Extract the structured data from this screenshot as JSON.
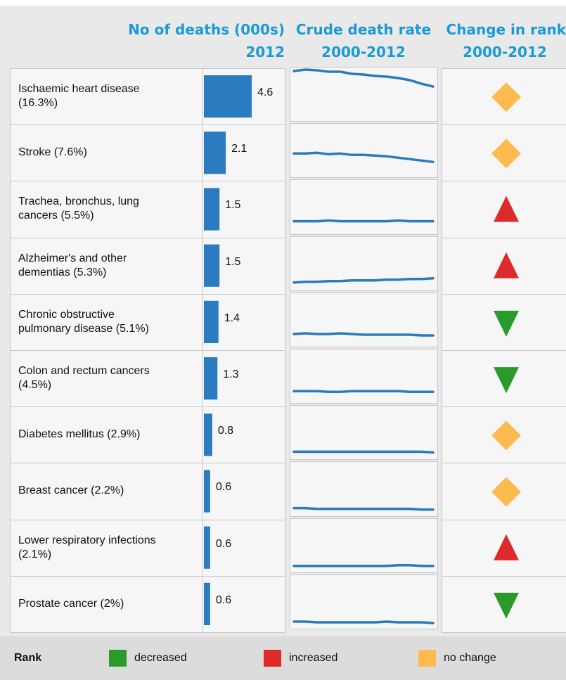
{
  "header": {
    "deaths_title": "No of deaths (000s)",
    "deaths_year": "2012",
    "rate_title": "Crude death rate",
    "rate_years": "2000-2012",
    "rank_title": "Change in rank",
    "rank_years": "2000-2012"
  },
  "bar_color": "#2b7bc0",
  "line_color": "#2b7bc0",
  "rows": [
    {
      "cause": "Ischaemic heart disease (16.3%)",
      "deaths": 4.6,
      "rate_trend": [
        68,
        70,
        69,
        67,
        67,
        64,
        63,
        61,
        60,
        58,
        55,
        50,
        46
      ],
      "rank_change": "no change"
    },
    {
      "cause": "Stroke (7.6%)",
      "deaths": 2.1,
      "rate_trend": [
        31,
        31,
        32,
        30,
        31,
        29,
        29,
        28,
        27,
        25,
        23,
        21,
        19
      ],
      "rank_change": "no change"
    },
    {
      "cause": "Trachea, bronchus, lung cancers (5.5%)",
      "deaths": 1.5,
      "rate_trend": [
        15,
        15,
        15,
        16,
        15,
        15,
        15,
        15,
        15,
        16,
        15,
        15,
        15
      ],
      "rank_change": "increased"
    },
    {
      "cause": "Alzheimer's and other dementias (5.3%)",
      "deaths": 1.5,
      "rate_trend": [
        8,
        9,
        9,
        10,
        10,
        11,
        11,
        11,
        12,
        12,
        13,
        13,
        14
      ],
      "rank_change": "increased"
    },
    {
      "cause": "Chronic obstructive pulmonary disease (5.1%)",
      "deaths": 1.4,
      "rate_trend": [
        15,
        16,
        15,
        15,
        16,
        15,
        14,
        14,
        14,
        14,
        14,
        13,
        13
      ],
      "rank_change": "decreased"
    },
    {
      "cause": "Colon and rectum cancers (4.5%)",
      "deaths": 1.3,
      "rate_trend": [
        14,
        14,
        14,
        13,
        13,
        14,
        14,
        14,
        14,
        14,
        13,
        13,
        13
      ],
      "rank_change": "decreased"
    },
    {
      "cause": "Diabetes mellitus (2.9%)",
      "deaths": 0.8,
      "rate_trend": [
        8,
        8,
        8,
        8,
        8,
        8,
        8,
        8,
        8,
        8,
        8,
        8,
        7
      ],
      "rank_change": "no change"
    },
    {
      "cause": "Breast cancer (2.2%)",
      "deaths": 0.6,
      "rate_trend": [
        8,
        8,
        7,
        7,
        7,
        7,
        7,
        7,
        7,
        7,
        7,
        6,
        6
      ],
      "rank_change": "no change"
    },
    {
      "cause": "Lower respiratory infections (2.1%)",
      "deaths": 0.6,
      "rate_trend": [
        6,
        6,
        6,
        6,
        6,
        6,
        6,
        6,
        6,
        7,
        7,
        6,
        6
      ],
      "rank_change": "increased"
    },
    {
      "cause": "Prostate cancer (2%)",
      "deaths": 0.6,
      "rate_trend": [
        7,
        7,
        6,
        6,
        6,
        6,
        6,
        6,
        7,
        6,
        6,
        6,
        5
      ],
      "rank_change": "decreased"
    }
  ],
  "legend": {
    "title": "Rank",
    "items": [
      {
        "label": "decreased",
        "color": "#2a9a2a"
      },
      {
        "label": "increased",
        "color": "#dd2b2b"
      },
      {
        "label": "no change",
        "color": "#fdbb4f"
      }
    ]
  }
}
